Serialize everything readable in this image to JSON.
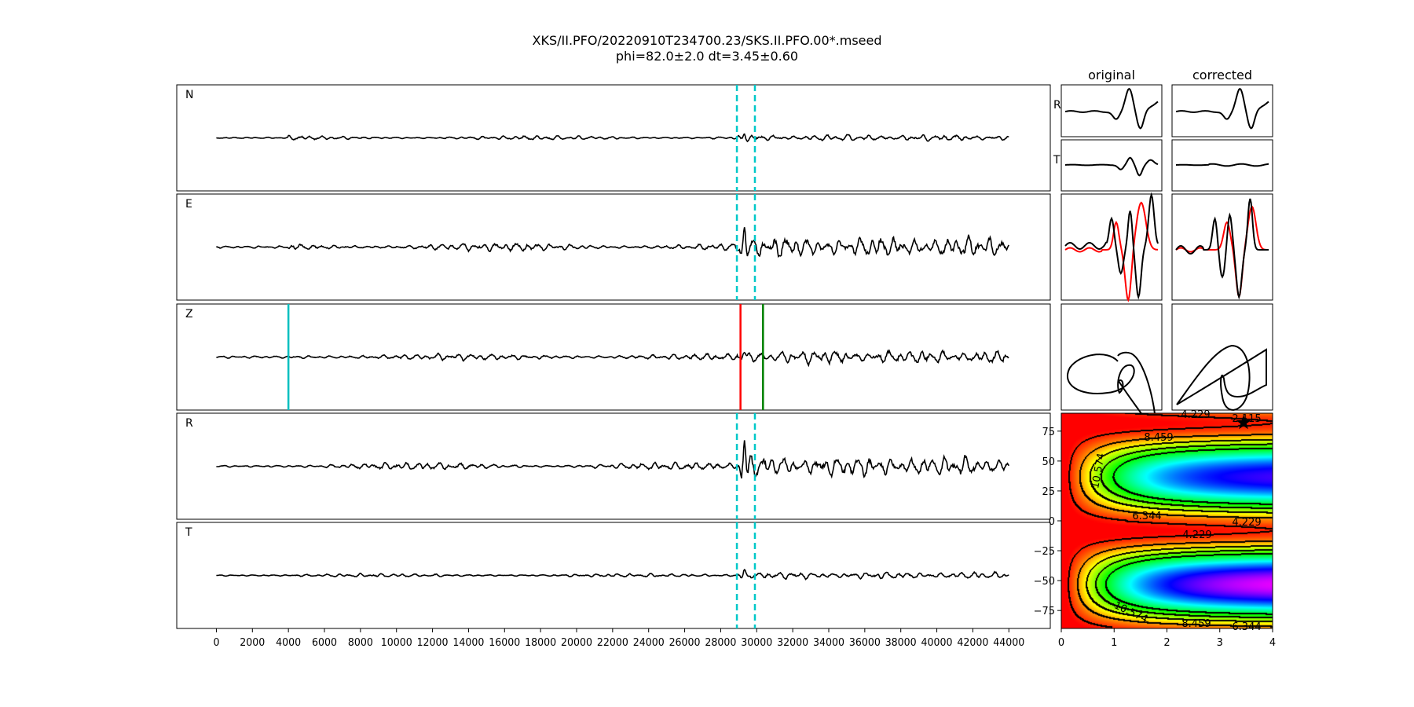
{
  "title": "XKS/II.PFO/20220910T234700.23/SKS.II.PFO.00*.mseed",
  "subtitle": "phi=82.0±2.0 dt=3.45±0.60",
  "column_titles": {
    "original": "original",
    "corrected": "corrected"
  },
  "small_row_labels": [
    "R",
    "T"
  ],
  "colors": {
    "window": "#00c8c8",
    "p_pick": "#00bfbf",
    "window_start": "#ff0000",
    "window_end": "#008000",
    "trace": "#000000",
    "secondary_trace": "#ff0000"
  },
  "chart_data": [
    {
      "type": "line",
      "panels": [
        "N",
        "E",
        "Z",
        "R",
        "T"
      ],
      "x_ticks": [
        "0",
        "2000",
        "4000",
        "6000",
        "8000",
        "10000",
        "12000",
        "14000",
        "16000",
        "18000",
        "20000",
        "22000",
        "24000",
        "26000",
        "28000",
        "30000",
        "32000",
        "34000",
        "36000",
        "38000",
        "40000",
        "42000",
        "44000"
      ],
      "xlim": [
        -2200,
        46300
      ],
      "trace_range": [
        0,
        44000
      ],
      "markers": {
        "window_dashed": [
          28900,
          29900
        ],
        "z_cyan": 4000,
        "z_red": 29100,
        "z_green": 30350
      }
    },
    {
      "type": "heatmap",
      "xlim": [
        0,
        4
      ],
      "ylim": [
        -90,
        90
      ],
      "x_ticks": [
        "0",
        "1",
        "2",
        "3",
        "4"
      ],
      "y_ticks": [
        "75",
        "50",
        "25",
        "0",
        "−25",
        "−50",
        "−75"
      ],
      "y_tick_values": [
        75,
        50,
        25,
        0,
        -25,
        -50,
        -75
      ],
      "x_tick_values": [
        0,
        1,
        2,
        3,
        4
      ],
      "contour_levels": [
        "2.115",
        "4.229",
        "6.344",
        "8.459",
        "10.574"
      ],
      "contour_labels": [
        "4.229",
        "2.115",
        "8.459",
        "10.574",
        "6.344",
        "4.229",
        "4.229",
        "10.574",
        "8.459",
        "6.344"
      ],
      "best": {
        "dt": 3.45,
        "phi": 82.0
      },
      "colormap": "gist_rainbow (red = low, magenta = high)"
    }
  ]
}
